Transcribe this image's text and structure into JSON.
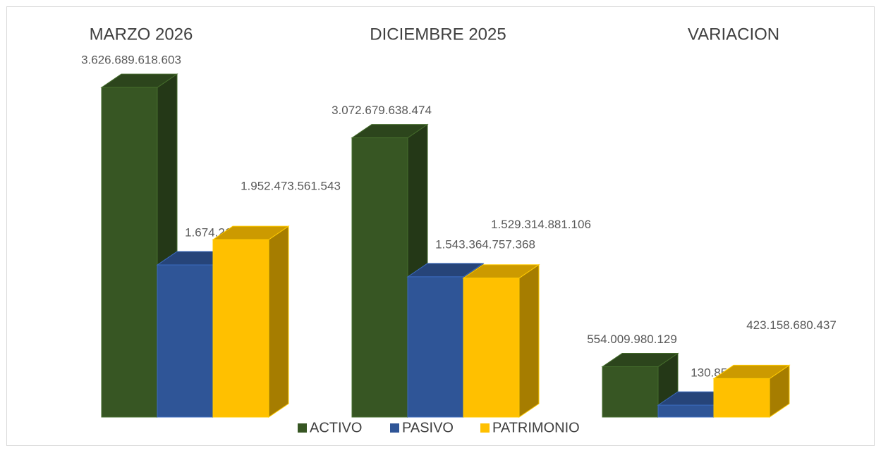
{
  "chart_data": {
    "type": "bar3d",
    "categories": [
      "MARZO 2026",
      "DICIEMBRE 2025",
      "VARIACION"
    ],
    "series": [
      {
        "name": "ACTIVO",
        "color": "#375623",
        "values": [
          3626689618603,
          3072679638474,
          554009980129
        ],
        "value_labels": [
          "3.626.689.618.603",
          "3.072.679.638.474",
          "554.009.980.129"
        ]
      },
      {
        "name": "PASIVO",
        "color": "#2f5597",
        "values": [
          1674216057060,
          1543364757368,
          130851299692
        ],
        "value_labels": [
          "1.674.216.057.060",
          "1.543.364.757.368",
          "130.851.299.692"
        ]
      },
      {
        "name": "PATRIMONIO",
        "color": "#ffc000",
        "values": [
          1952473561543,
          1529314881106,
          423158680437
        ],
        "value_labels": [
          "1.952.473.561.543",
          "1.529.314.881.106",
          "423.158.680.437"
        ]
      }
    ],
    "ylim": [
      0,
      4000000000000
    ],
    "legend": "bottom"
  }
}
